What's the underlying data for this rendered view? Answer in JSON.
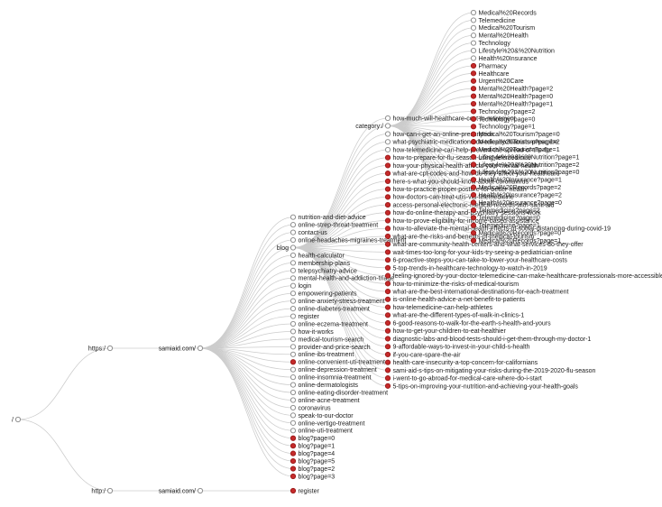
{
  "diagram": {
    "type": "url-crawl-tree",
    "root_label": "/",
    "https_label": "https:/",
    "http_label": "http:/",
    "host_https_label": "samiaid.com/",
    "host_http_label": "samiaid.com/",
    "blog_label": "blog",
    "category_label": "category:/",
    "http_leaf": {
      "label": "register",
      "status": "red"
    },
    "colors": {
      "red_dot_fill": "#c62a2a",
      "red_dot_stroke": "#9e1c1c",
      "open_dot_fill": "#ffffff",
      "open_dot_stroke": "#909090",
      "edge": "#cccccc",
      "label": "#1a1a1a"
    },
    "site_pages": [
      {
        "label": "nutrition-and-diet-advice",
        "status": "open"
      },
      {
        "label": "online-strep-throat-treatment",
        "status": "open"
      },
      {
        "label": "contact-us",
        "status": "open"
      },
      {
        "label": "online-headaches-migraines-treatment",
        "status": "open"
      },
      {
        "label": "health-calculator",
        "status": "open"
      },
      {
        "label": "membership-plans",
        "status": "open"
      },
      {
        "label": "telepsychiatry-advice",
        "status": "open"
      },
      {
        "label": "mental-health-and-addiction-triage",
        "status": "open"
      },
      {
        "label": "login",
        "status": "open"
      },
      {
        "label": "empowering-patients",
        "status": "open"
      },
      {
        "label": "online-anxiety-stress-treatment",
        "status": "open"
      },
      {
        "label": "online-diabetes-treatment",
        "status": "open"
      },
      {
        "label": "register",
        "status": "open"
      },
      {
        "label": "online-eczema-treatment",
        "status": "open"
      },
      {
        "label": "how-it-works",
        "status": "open"
      },
      {
        "label": "medical-tourism-search",
        "status": "open"
      },
      {
        "label": "provider-and-price-search",
        "status": "open"
      },
      {
        "label": "online-ibs-treatment",
        "status": "open"
      },
      {
        "label": "online-convenient-uti-treatment",
        "status": "red"
      },
      {
        "label": "online-depression-treatment",
        "status": "open"
      },
      {
        "label": "online-insomnia-treatment",
        "status": "open"
      },
      {
        "label": "online-dermatologists",
        "status": "open"
      },
      {
        "label": "online-eating-disorder-treatment",
        "status": "open"
      },
      {
        "label": "online-acne-treatment",
        "status": "open"
      },
      {
        "label": "coronavirus",
        "status": "open"
      },
      {
        "label": "speak-to-our-doctor",
        "status": "open"
      },
      {
        "label": "online-vertigo-treatment",
        "status": "open"
      },
      {
        "label": "online-uti-treatment",
        "status": "open"
      },
      {
        "label": "blog?page=0",
        "status": "red"
      },
      {
        "label": "blog?page=1",
        "status": "red"
      },
      {
        "label": "blog?page=4",
        "status": "red"
      },
      {
        "label": "blog?page=5",
        "status": "red"
      },
      {
        "label": "blog?page=2",
        "status": "red"
      },
      {
        "label": "blog?page=3",
        "status": "red"
      }
    ],
    "blog_posts": [
      {
        "label": "how-much-will-healthcare-cost-in-retirement",
        "status": "open"
      },
      {
        "label": "how-can-i-get-an-online-prescription",
        "status": "open"
      },
      {
        "label": "what-psychiatric-medications-do-telepsychiatrists-prescribe",
        "status": "open"
      },
      {
        "label": "how-telemedicine-can-help-prevent-the-spread-of-the-flu",
        "status": "open"
      },
      {
        "label": "how-to-prepare-for-flu-season-using-telemedicine",
        "status": "red"
      },
      {
        "label": "how-your-physical-health-affects-your-mental-health",
        "status": "red"
      },
      {
        "label": "what-are-cpt-codes-and-how-do-they-affect-your-healthcare",
        "status": "red"
      },
      {
        "label": "here-s-what-you-should-know-about-coronavirus",
        "status": "red"
      },
      {
        "label": "how-to-practice-proper-posture-for-better-health",
        "status": "red"
      },
      {
        "label": "how-doctors-can-treat-utis-via-telemedicine",
        "status": "red"
      },
      {
        "label": "access-personal-electronic-medical-records-with-sami-aid",
        "status": "red"
      },
      {
        "label": "how-do-online-therapy-and-psychiatry-sessions-work",
        "status": "red"
      },
      {
        "label": "how-to-prove-eligibility-for-income-based-assistance",
        "status": "red"
      },
      {
        "label": "how-to-alleviate-the-mental-health-effects-of-social-distancing-during-covid-19",
        "status": "red"
      },
      {
        "label": "what-are-the-risks-and-benefits-of-medical-tourism",
        "status": "red"
      },
      {
        "label": "what-are-community-health-centers-and-what-services-do-they-offer",
        "status": "red"
      },
      {
        "label": "wait-times-too-long-for-your-kids-try-seeing-a-pediatrician-online",
        "status": "red"
      },
      {
        "label": "6-proactive-steps-you-can-take-to-lower-your-healthcare-costs",
        "status": "red"
      },
      {
        "label": "5-top-trends-in-healthcare-technology-to-watch-in-2019",
        "status": "red"
      },
      {
        "label": "feeling-ignored-by-your-doctor-telemedicine-can-make-healthcare-professionals-more-accessible",
        "status": "red"
      },
      {
        "label": "how-to-minimize-the-risks-of-medical-tourism",
        "status": "red"
      },
      {
        "label": "what-are-the-best-international-destinations-for-each-treatment",
        "status": "red"
      },
      {
        "label": "is-online-health-advice-a-net-benefit-to-patients",
        "status": "red"
      },
      {
        "label": "how-telemedicine-can-help-athletes",
        "status": "red"
      },
      {
        "label": "what-are-the-different-types-of-walk-in-clinics-1",
        "status": "red"
      },
      {
        "label": "6-good-reasons-to-walk-for-the-earth-s-health-and-yours",
        "status": "red"
      },
      {
        "label": "how-to-get-your-children-to-eat-healthier",
        "status": "red"
      },
      {
        "label": "diagnostic-labs-and-blood-tests-should-i-get-them-through-my-doctor-1",
        "status": "red"
      },
      {
        "label": "9-affordable-ways-to-invest-in-your-child-s-health",
        "status": "red"
      },
      {
        "label": "if-you-care-spare-the-air",
        "status": "red"
      },
      {
        "label": "health-care-insecurity-a-top-concern-for-californians",
        "status": "red"
      },
      {
        "label": "sami-aid-s-tips-on-mitigating-your-risks-during-the-2019-2020-flu-season",
        "status": "red"
      },
      {
        "label": "i-went-to-go-abroad-for-medical-care-where-do-i-start",
        "status": "red"
      },
      {
        "label": "5-tips-on-improving-your-nutrition-and-achieving-your-health-goals",
        "status": "red"
      }
    ],
    "category_pages": [
      {
        "label": "Medical%20Records",
        "status": "open"
      },
      {
        "label": "Telemedicine",
        "status": "open"
      },
      {
        "label": "Medical%20Tourism",
        "status": "open"
      },
      {
        "label": "Mental%20Health",
        "status": "open"
      },
      {
        "label": "Technology",
        "status": "open"
      },
      {
        "label": "Lifestyle%20&%20Nutrition",
        "status": "open"
      },
      {
        "label": "Health%20Insurance",
        "status": "open"
      },
      {
        "label": "Pharmacy",
        "status": "red"
      },
      {
        "label": "Healthcare",
        "status": "red"
      },
      {
        "label": "Urgent%20Care",
        "status": "red"
      },
      {
        "label": "Mental%20Health?page=2",
        "status": "red"
      },
      {
        "label": "Mental%20Health?page=0",
        "status": "red"
      },
      {
        "label": "Mental%20Health?page=1",
        "status": "red"
      },
      {
        "label": "Technology?page=2",
        "status": "red"
      },
      {
        "label": "Technology?page=0",
        "status": "red"
      },
      {
        "label": "Technology?page=1",
        "status": "red"
      },
      {
        "label": "Medical%20Tourism?page=0",
        "status": "red"
      },
      {
        "label": "Medical%20Tourism?page=2",
        "status": "red"
      },
      {
        "label": "Medical%20Tourism?page=1",
        "status": "red"
      },
      {
        "label": "Lifestyle%20&%20Nutrition?page=1",
        "status": "red"
      },
      {
        "label": "Lifestyle%20&%20Nutrition?page=2",
        "status": "red"
      },
      {
        "label": "Lifestyle%20&%20Nutrition?page=0",
        "status": "red"
      },
      {
        "label": "Health%20Insurance?page=1",
        "status": "red"
      },
      {
        "label": "Medical%20Records?page=2",
        "status": "red"
      },
      {
        "label": "Health%20Insurance?page=2",
        "status": "red"
      },
      {
        "label": "Health%20Insurance?page=0",
        "status": "red"
      },
      {
        "label": "Telemedicine?page=2",
        "status": "red"
      },
      {
        "label": "Telemedicine?page=0",
        "status": "red"
      },
      {
        "label": "Telemedicine?page=1",
        "status": "red"
      },
      {
        "label": "Medical%20Records?page=0",
        "status": "red"
      },
      {
        "label": "Medical%20Records?page=1",
        "status": "red"
      }
    ]
  }
}
